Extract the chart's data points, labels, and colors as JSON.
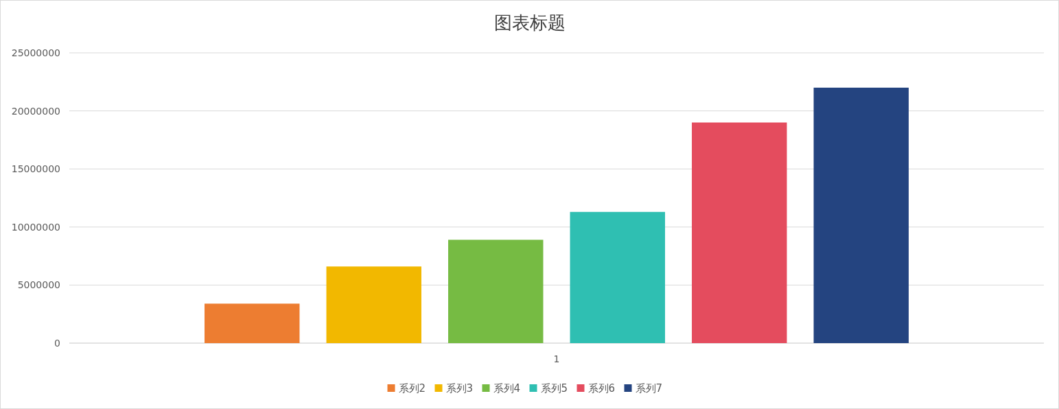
{
  "chart_data": {
    "type": "bar",
    "title": "图表标题",
    "categories": [
      "1"
    ],
    "series": [
      {
        "name": "系列2",
        "color": "#ed7d31",
        "values": [
          3400000
        ]
      },
      {
        "name": "系列3",
        "color": "#f2b800",
        "values": [
          6600000
        ]
      },
      {
        "name": "系列4",
        "color": "#76bb43",
        "values": [
          8900000
        ]
      },
      {
        "name": "系列5",
        "color": "#2fbfb2",
        "values": [
          11300000
        ]
      },
      {
        "name": "系列6",
        "color": "#e44c5e",
        "values": [
          19000000
        ]
      },
      {
        "name": "系列7",
        "color": "#244480",
        "values": [
          22000000
        ]
      }
    ],
    "ylim": [
      0,
      25000000
    ],
    "yticks": [
      0,
      5000000,
      10000000,
      15000000,
      20000000,
      25000000
    ],
    "grid": "y",
    "legend": "bottom"
  }
}
